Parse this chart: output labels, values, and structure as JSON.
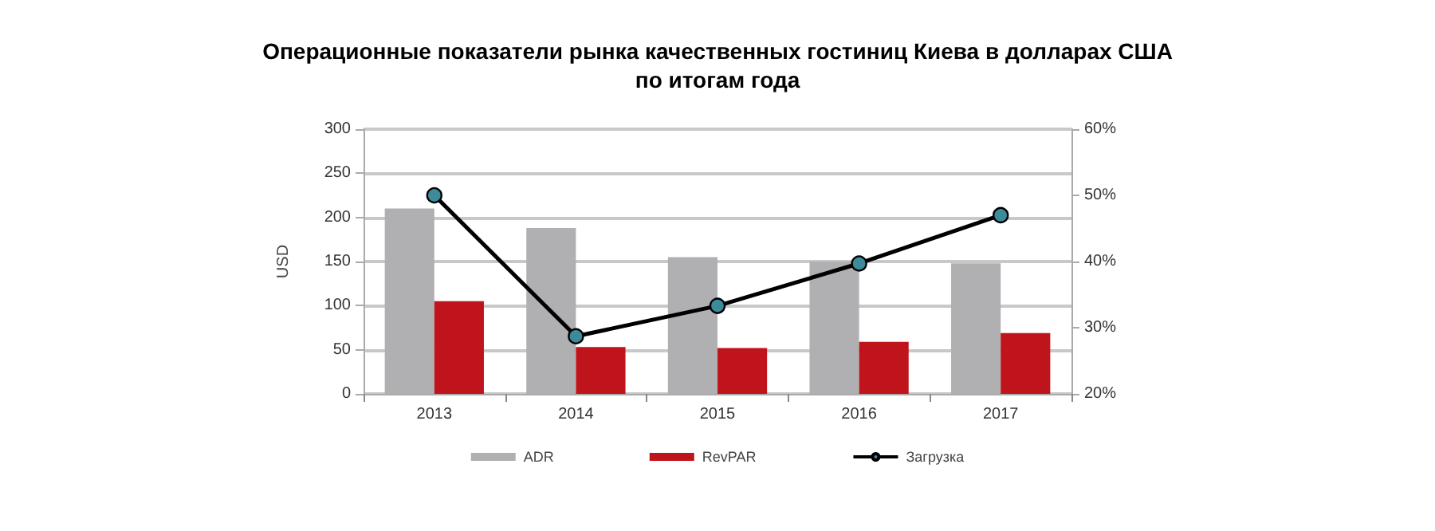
{
  "chart_data": {
    "type": "bar",
    "title": "Операционные показатели рынка качественных гостиниц Киева в долларах США\nпо итогам года",
    "ylabel": "USD",
    "categories": [
      "2013",
      "2014",
      "2015",
      "2016",
      "2017"
    ],
    "series": [
      {
        "name": "ADR",
        "color": "#b0b0b2",
        "values": [
          210,
          188,
          155,
          150,
          148
        ]
      },
      {
        "name": "RevPAR",
        "color": "#c0141c",
        "values": [
          105,
          53,
          52,
          59,
          69
        ]
      },
      {
        "name": "Загрузка",
        "type": "line",
        "axis": "y2",
        "color": "#000000",
        "marker": "circle",
        "values": [
          50,
          28.7,
          33.3,
          39.7,
          47
        ]
      }
    ],
    "ylim": [
      0,
      300
    ],
    "yticks": [
      0,
      50,
      100,
      150,
      200,
      250,
      300
    ],
    "y2lim": [
      20,
      60
    ],
    "y2ticks": [
      {
        "value": 20,
        "label": "20%"
      },
      {
        "value": 30,
        "label": "30%"
      },
      {
        "value": 40,
        "label": "40%"
      },
      {
        "value": 50,
        "label": "50%"
      },
      {
        "value": 60,
        "label": "60%"
      }
    ],
    "grid": "y",
    "legend": "bottom"
  }
}
